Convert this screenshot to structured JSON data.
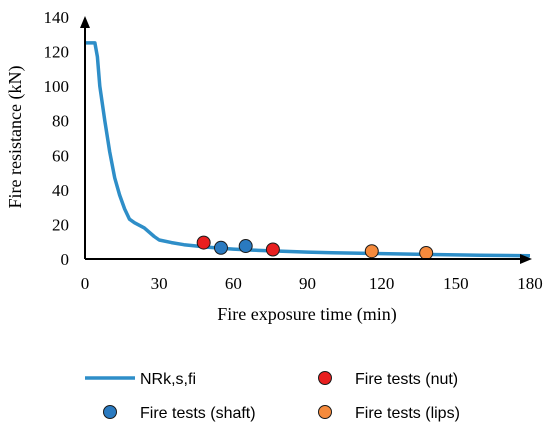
{
  "chart_data": {
    "type": "scatter",
    "xlabel": "Fire exposure time (min)",
    "ylabel": "Fire resistance (kN)",
    "xlim": [
      0,
      180
    ],
    "ylim": [
      0,
      140
    ],
    "x_ticks": [
      0,
      30,
      60,
      90,
      120,
      150,
      180
    ],
    "y_ticks": [
      0,
      20,
      40,
      60,
      80,
      100,
      120,
      140
    ],
    "grid": false,
    "legend_position": "bottom",
    "series": [
      {
        "name": "NRk,s,fi",
        "kind": "line",
        "color": "#2e8ec8",
        "points": [
          [
            0,
            125
          ],
          [
            4,
            125
          ],
          [
            5,
            117
          ],
          [
            6,
            100
          ],
          [
            8,
            80
          ],
          [
            10,
            62
          ],
          [
            12,
            47
          ],
          [
            14,
            37
          ],
          [
            16,
            29
          ],
          [
            18,
            23
          ],
          [
            20,
            21
          ],
          [
            24,
            18
          ],
          [
            28,
            13
          ],
          [
            30,
            11
          ],
          [
            35,
            9.5
          ],
          [
            40,
            8.3
          ],
          [
            45,
            7.5
          ],
          [
            50,
            6.8
          ],
          [
            55,
            6.2
          ],
          [
            60,
            5.7
          ],
          [
            70,
            5.0
          ],
          [
            80,
            4.5
          ],
          [
            90,
            4.0
          ],
          [
            100,
            3.6
          ],
          [
            120,
            3.1
          ],
          [
            140,
            2.6
          ],
          [
            160,
            2.2
          ],
          [
            180,
            1.9
          ]
        ]
      },
      {
        "name": "Fire tests (nut)",
        "kind": "points",
        "color": "#e81f1f",
        "points": [
          [
            48,
            9.5
          ],
          [
            76,
            5.5
          ]
        ]
      },
      {
        "name": "Fire tests (shaft)",
        "kind": "points",
        "color": "#2a7ac0",
        "points": [
          [
            55,
            6.5
          ],
          [
            65,
            7.5
          ]
        ]
      },
      {
        "name": "Fire tests (lips)",
        "kind": "points",
        "color": "#f58a3c",
        "points": [
          [
            116,
            4.5
          ],
          [
            138,
            3.5
          ]
        ]
      }
    ]
  }
}
